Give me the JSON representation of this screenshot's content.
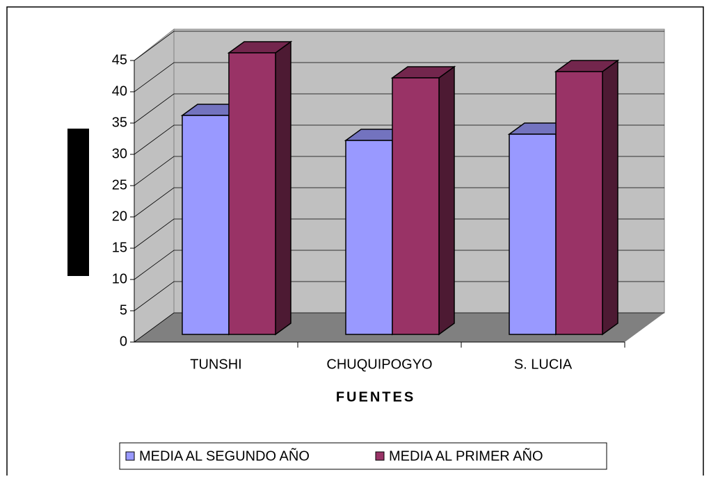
{
  "chart_data": {
    "type": "bar3d",
    "x_label": "FUENTES",
    "categories": [
      "TUNSHI",
      "CHUQUIPOGYO",
      "S. LUCIA"
    ],
    "series": [
      {
        "name": "MEDIA AL SEGUNDO AÑO",
        "color": "#9999ff",
        "values": [
          35,
          31,
          32
        ]
      },
      {
        "name": "MEDIA AL PRIMER AÑO",
        "color": "#993366",
        "values": [
          45,
          41,
          42
        ]
      }
    ],
    "ylim": [
      0,
      45
    ],
    "yticks": [
      0,
      5,
      10,
      15,
      20,
      25,
      30,
      35,
      40,
      45
    ],
    "grid": true
  }
}
